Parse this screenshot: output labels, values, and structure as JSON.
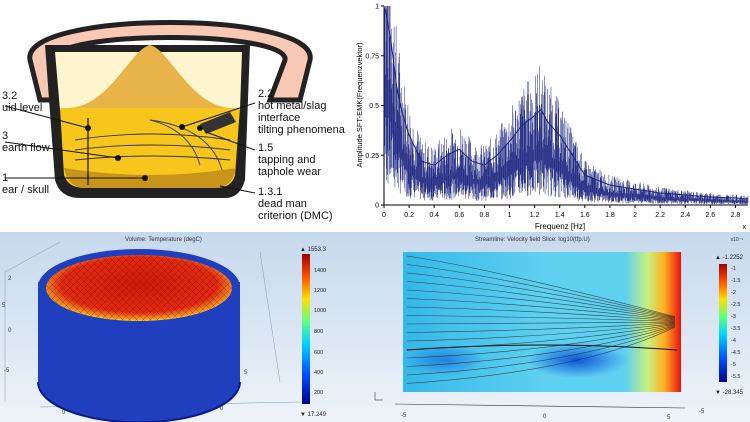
{
  "furnace_diagram": {
    "labels_left": [
      "3.2",
      "uid level",
      "3",
      "earth flow",
      "1",
      "ear / skull"
    ],
    "labels_right": [
      "2.2",
      "hot metal/slag",
      "interface",
      "tilting phenomena",
      "1.5",
      "tapping and",
      "taphole wear",
      "1.3.1",
      "dead man",
      "criterion (DMC)"
    ]
  },
  "spectrum_chart": {
    "chart_data": {
      "type": "line",
      "title": "",
      "xlabel": "Frequenz [Hz]",
      "ylabel": "Amplitude SFT-EMK(Frequenzvektor)",
      "xlim": [
        0,
        2.9
      ],
      "ylim": [
        0,
        1
      ],
      "x_ticks": [
        "0",
        "0.2",
        "0.4",
        "0.6",
        "0.8",
        "1",
        "1.2",
        "1.4",
        "1.6",
        "1.8",
        "2",
        "2.2",
        "2.4",
        "2.6",
        "2.8"
      ],
      "y_ticks": [
        "0",
        "0.25",
        "0.5",
        "0.75",
        "1"
      ],
      "x_corner_label": "x",
      "series": [
        {
          "name": "Amplitude",
          "x": [
            0,
            0.02,
            0.05,
            0.1,
            0.15,
            0.2,
            0.3,
            0.4,
            0.5,
            0.6,
            0.7,
            0.8,
            0.9,
            1.0,
            1.1,
            1.2,
            1.25,
            1.3,
            1.4,
            1.5,
            1.6,
            1.8,
            2.0,
            2.2,
            2.4,
            2.6,
            2.8,
            2.9
          ],
          "values": [
            1.0,
            0.95,
            0.85,
            0.6,
            0.45,
            0.35,
            0.22,
            0.2,
            0.25,
            0.28,
            0.22,
            0.2,
            0.25,
            0.32,
            0.4,
            0.45,
            0.48,
            0.42,
            0.35,
            0.25,
            0.15,
            0.1,
            0.08,
            0.06,
            0.05,
            0.04,
            0.035,
            0.03
          ]
        }
      ]
    }
  },
  "thermal_model": {
    "title": "Volume: Temperature (degC)",
    "max_label": "▲ 1553.3",
    "min_label": "▼ 17.249",
    "colorbar_ticks": [
      "1400",
      "1200",
      "1000",
      "800",
      "600",
      "400",
      "200"
    ],
    "axis_labels": [
      "5",
      "0",
      "-5",
      "0",
      "5",
      "2",
      "0"
    ]
  },
  "streamline_model": {
    "title": "Streamline: Velocity field   Slice: log10(tfp.U)",
    "max_label": "▲ -1.2252",
    "min_label": "▼ -28.345",
    "colorbar_ticks": [
      "-1",
      "-1.5",
      "-2",
      "-2.5",
      "-3",
      "-3.5",
      "-4",
      "-4.5",
      "-5",
      "-5.5"
    ],
    "axis_labels": [
      "-5",
      "0",
      "5",
      "-5"
    ],
    "corner_label": "x10⁻¹"
  }
}
